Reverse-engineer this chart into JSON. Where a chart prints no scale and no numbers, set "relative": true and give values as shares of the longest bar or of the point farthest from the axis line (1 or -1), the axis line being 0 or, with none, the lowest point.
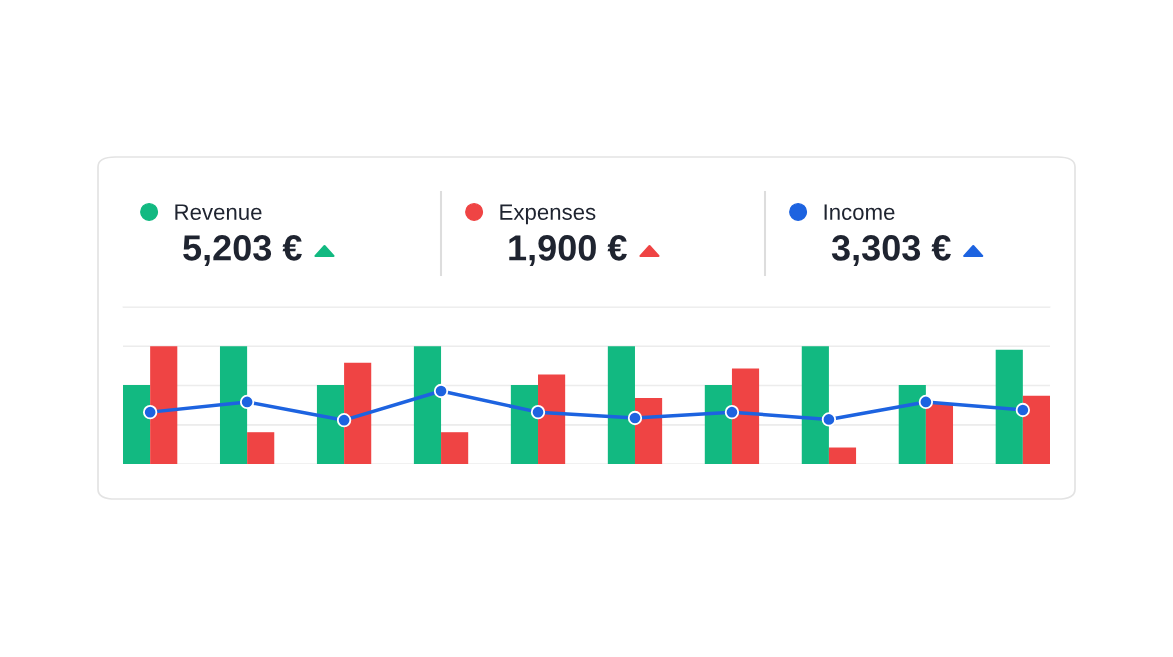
{
  "chart_data": [
    {
      "type": "bar",
      "relative": true,
      "grid": "y",
      "legend": "top",
      "categories": [
        null,
        null,
        null,
        null,
        null,
        null,
        null,
        null,
        null,
        null
      ],
      "series": [
        {
          "name": "Revenue",
          "color": "#12b981",
          "values": [
            0.67,
            1,
            0.67,
            1,
            0.67,
            1,
            0.67,
            1,
            0.67,
            0.97
          ]
        },
        {
          "name": "Expenses",
          "color": "#ef4444",
          "values": [
            1,
            0.27,
            0.86,
            0.27,
            0.76,
            0.56,
            0.81,
            0.14,
            0.51,
            0.58
          ]
        }
      ],
      "ref_lines": [
        {
          "axis": "y",
          "value": 0.33,
          "color": "#ececec"
        }
      ],
      "annotations": [
        "5,203 €",
        "1,900 €"
      ]
    },
    {
      "type": "line",
      "relative": true,
      "legend": "top",
      "marker": "circle",
      "categories": [
        null,
        null,
        null,
        null,
        null,
        null,
        null,
        null,
        null,
        null
      ],
      "series": [
        {
          "name": "Income",
          "color": "#1d63e0",
          "values": [
            0.71,
            0.85,
            0.6,
            1,
            0.71,
            0.63,
            0.71,
            0.61,
            0.85,
            0.74
          ]
        }
      ],
      "annotations": [
        "3,303 €"
      ]
    }
  ]
}
